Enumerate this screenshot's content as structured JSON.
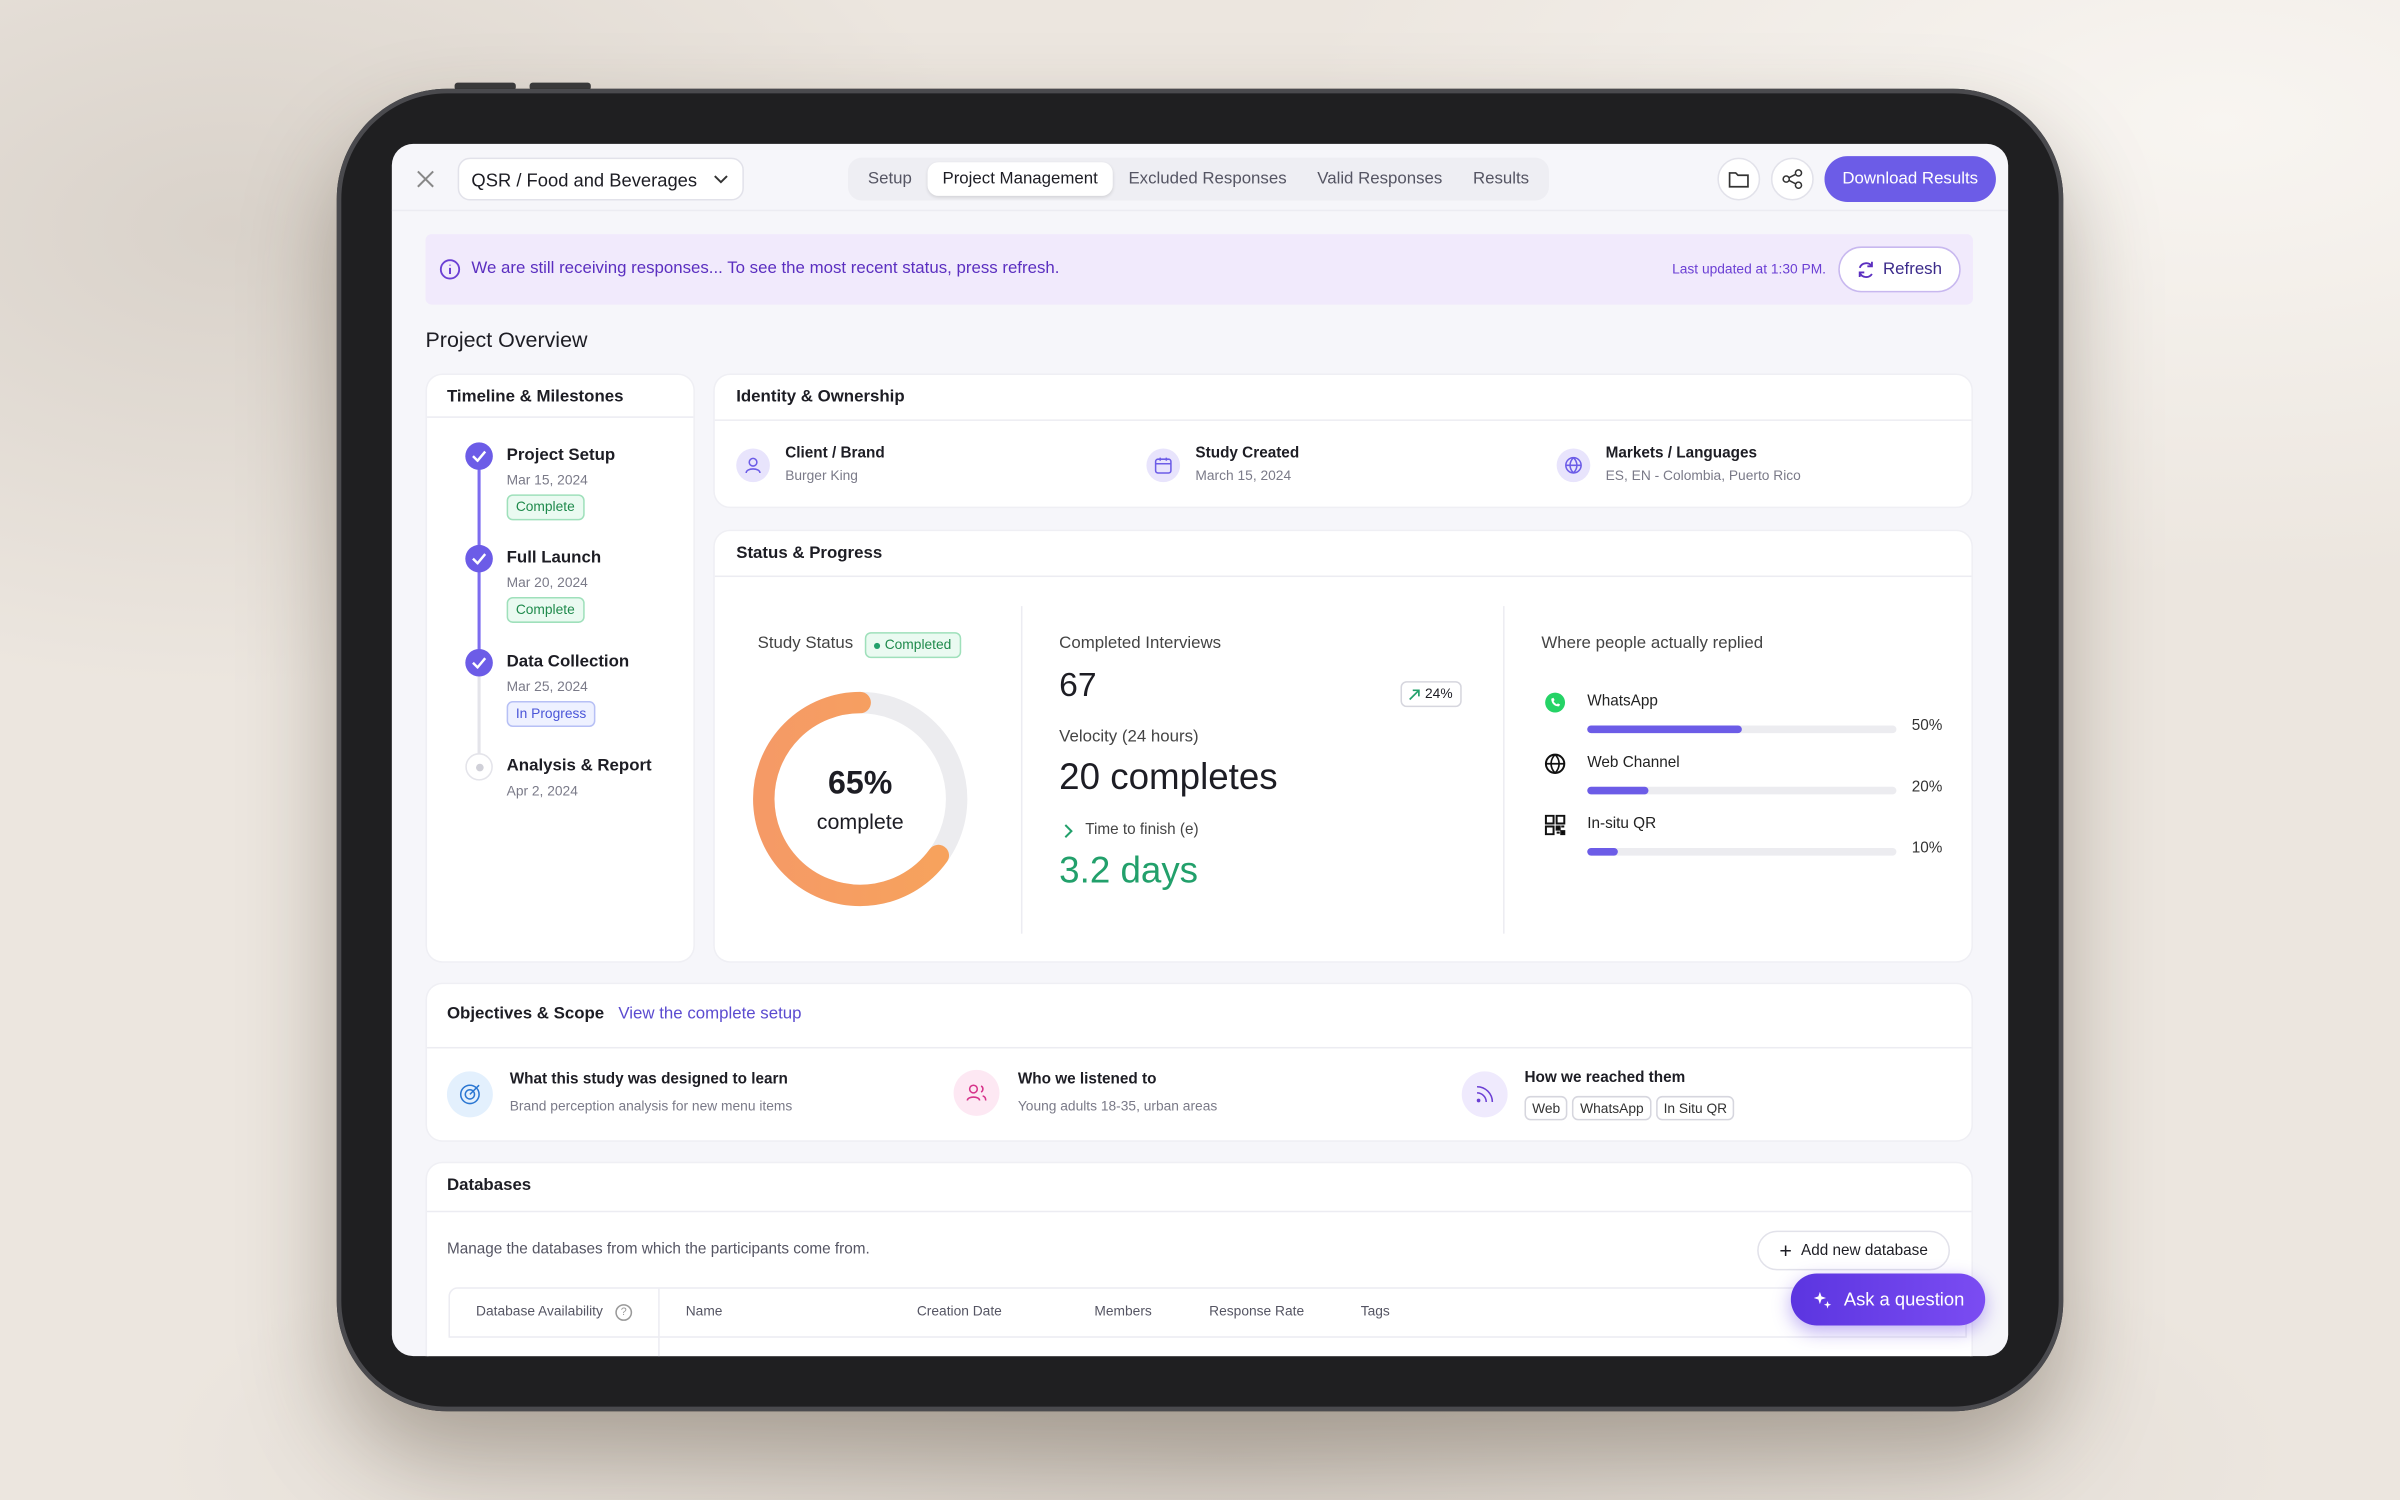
{
  "header": {
    "project": "QSR / Food and Beverages",
    "tabs": [
      "Setup",
      "Project Management",
      "Excluded Responses",
      "Valid Responses",
      "Results"
    ],
    "download_button": "Download Results"
  },
  "banner": {
    "message": "We are still receiving responses... To see the most recent status, press refresh.",
    "last_updated": "Last updated at 1:30 PM.",
    "refresh_button": "Refresh"
  },
  "overview_title": "Project Overview",
  "timeline": {
    "title": "Timeline & Milestones",
    "milestones": [
      {
        "name": "Project Setup",
        "date": "Mar 15, 2024",
        "status": "Complete"
      },
      {
        "name": "Full Launch",
        "date": "Mar 20, 2024",
        "status": "Complete"
      },
      {
        "name": "Data Collection",
        "date": "Mar 25, 2024",
        "status": "In Progress"
      },
      {
        "name": "Analysis & Report",
        "date": "Apr 2, 2024"
      }
    ]
  },
  "identity": {
    "title": "Identity & Ownership",
    "items": [
      {
        "label": "Client / Brand",
        "value": "Burger King"
      },
      {
        "label": "Study Created",
        "value": "March 15, 2024"
      },
      {
        "label": "Markets / Languages",
        "value": "ES, EN - Colombia, Puerto Rico"
      }
    ]
  },
  "status": {
    "title": "Status & Progress",
    "study_status_label": "Study Status",
    "study_status": "Completed",
    "progress": 65,
    "progress_label": "65%",
    "progress_caption": "complete",
    "completed_label": "Completed Interviews",
    "completed": 67,
    "change": "24%",
    "velocity_label": "Velocity (24 hours)",
    "velocity": "20 completes",
    "finish_label": "Time to finish (e)",
    "finish": "3.2 days",
    "channels_title": "Where people actually replied",
    "channels": [
      {
        "name": "WhatsApp",
        "share": 50,
        "share_label": "50%"
      },
      {
        "name": "Web Channel",
        "share": 20,
        "share_label": "20%"
      },
      {
        "name": "In-situ QR",
        "share": 10,
        "share_label": "10%"
      }
    ]
  },
  "objectives": {
    "title": "Objectives & Scope",
    "link": "View the complete setup",
    "items": [
      {
        "title": "What this study was designed to learn",
        "text": "Brand perception analysis for new menu items"
      },
      {
        "title": "Who we listened to",
        "text": "Young adults 18-35, urban areas"
      },
      {
        "title": "How we reached them",
        "tags": [
          "Web",
          "WhatsApp",
          "In Situ QR"
        ]
      }
    ]
  },
  "databases": {
    "title": "Databases",
    "description": "Manage the databases from which the participants come from.",
    "add_button": "Add new database",
    "columns": [
      "Database Availability",
      "Name",
      "Creation Date",
      "Members",
      "Response Rate",
      "Tags"
    ]
  },
  "assistant_button": "Ask a question"
}
